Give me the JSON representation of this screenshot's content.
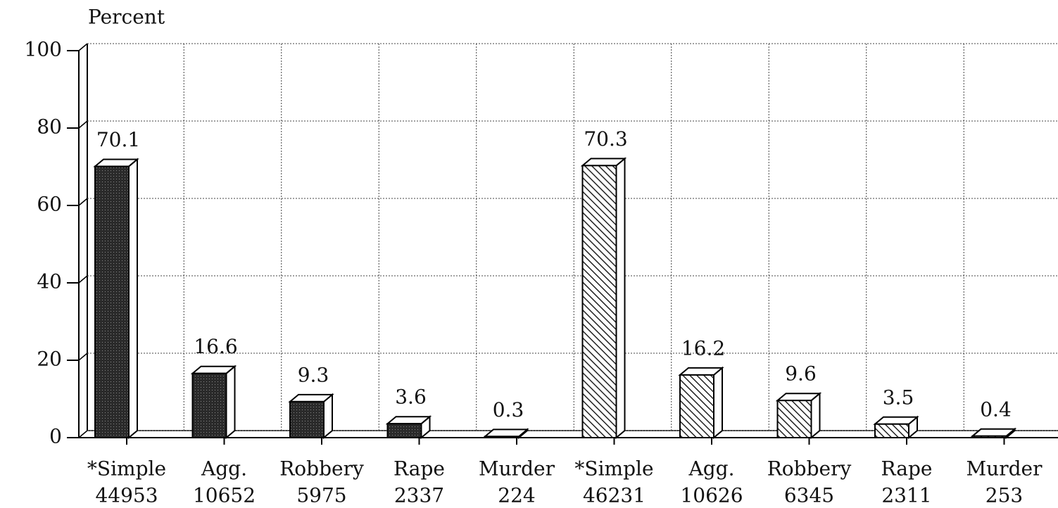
{
  "chart_data": {
    "type": "bar3d",
    "y_label": "Percent",
    "categories": [
      "*Simple",
      "Agg.",
      "Robbery",
      "Rape",
      "Murder",
      "*Simple",
      "Agg.",
      "Robbery",
      "Rape",
      "Murder"
    ],
    "counts": [
      44953,
      10652,
      5975,
      2337,
      224,
      46231,
      10626,
      6345,
      2311,
      253
    ],
    "series": [
      {
        "pattern": "solid",
        "color": "#2a2a2a",
        "values": [
          70.1,
          16.6,
          9.3,
          3.6,
          0.3,
          null,
          null,
          null,
          null,
          null
        ]
      },
      {
        "pattern": "hatch",
        "color": "#222222",
        "values": [
          null,
          null,
          null,
          null,
          null,
          70.3,
          16.2,
          9.6,
          3.5,
          0.4
        ]
      }
    ],
    "ylim": [
      0,
      100
    ],
    "yticks": [
      0,
      20,
      40,
      60,
      80,
      100
    ],
    "grid": true
  }
}
